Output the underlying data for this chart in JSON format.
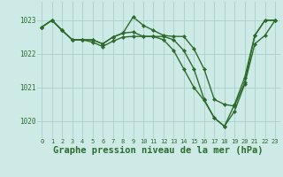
{
  "bg_color": "#ceeae6",
  "grid_color": "#aacfc9",
  "line_color": "#2d6b2d",
  "xlabel": "Graphe pression niveau de la mer (hPa)",
  "xlabel_fontsize": 7.5,
  "ylim": [
    1019.5,
    1023.55
  ],
  "xlim": [
    -0.5,
    23.5
  ],
  "yticks": [
    1020,
    1021,
    1022,
    1023
  ],
  "xticks": [
    0,
    1,
    2,
    3,
    4,
    5,
    6,
    7,
    8,
    9,
    10,
    11,
    12,
    13,
    14,
    15,
    16,
    17,
    18,
    19,
    20,
    21,
    22,
    23
  ],
  "series1": [
    1022.8,
    1023.0,
    1022.7,
    1022.42,
    1022.42,
    1022.42,
    1022.3,
    1022.5,
    1022.62,
    1023.1,
    1022.85,
    1022.7,
    1022.55,
    1022.52,
    1022.52,
    1022.15,
    1021.55,
    1020.65,
    1020.5,
    1020.45,
    1021.15,
    1022.55,
    1023.0,
    1023.0
  ],
  "series2": [
    1022.8,
    1023.0,
    1022.7,
    1022.42,
    1022.42,
    1022.42,
    1022.3,
    1022.5,
    1022.62,
    1022.65,
    1022.52,
    1022.52,
    1022.52,
    1022.42,
    1022.1,
    1021.55,
    1020.65,
    1020.1,
    1019.85,
    1020.5,
    1021.3,
    1022.55,
    1023.0,
    1023.0
  ],
  "series3": [
    1022.8,
    1023.0,
    1022.7,
    1022.42,
    1022.42,
    1022.35,
    1022.22,
    1022.38,
    1022.5,
    1022.52,
    1022.52,
    1022.52,
    1022.42,
    1022.1,
    1021.55,
    1021.0,
    1020.62,
    1020.1,
    1019.85,
    1020.3,
    1021.1,
    1022.3,
    1022.55,
    1023.0
  ]
}
